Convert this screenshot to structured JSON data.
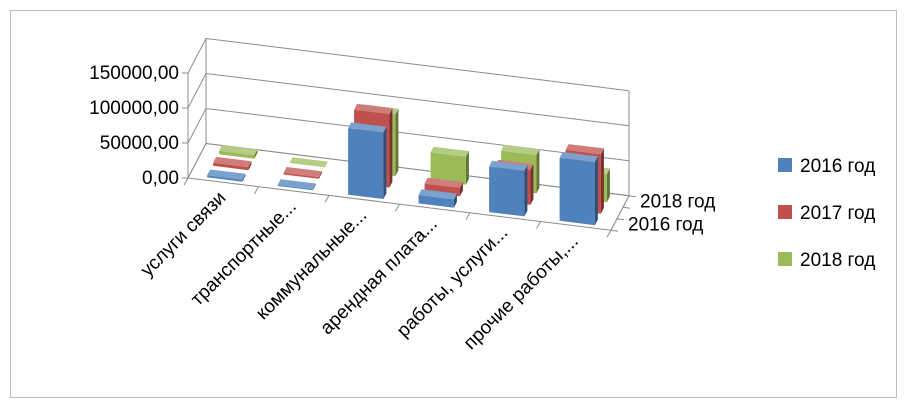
{
  "chart_data": {
    "type": "bar",
    "title": "",
    "xlabel": "",
    "ylabel": "",
    "ylim": [
      0,
      150000
    ],
    "y_ticks": [
      "0,00",
      "50000,00",
      "100000,00",
      "150000,00"
    ],
    "categories": [
      "услуги связи",
      "транспортные...",
      "коммунальные...",
      "арендная плата...",
      "работы, услуги...",
      "прочие работы,..."
    ],
    "depth_ticks": [
      "2016 год",
      "2018 год"
    ],
    "legend_position": "right",
    "series": [
      {
        "name": "2016 год",
        "color": "#4f81bd",
        "values": [
          3000,
          1500,
          95000,
          12000,
          65000,
          90000
        ]
      },
      {
        "name": "2017 год",
        "color": "#c0504d",
        "values": [
          4500,
          2500,
          105000,
          12000,
          50000,
          85000
        ]
      },
      {
        "name": "2018 год",
        "color": "#9bbb59",
        "values": [
          5000,
          0,
          88000,
          40000,
          55000,
          40000
        ]
      }
    ]
  }
}
